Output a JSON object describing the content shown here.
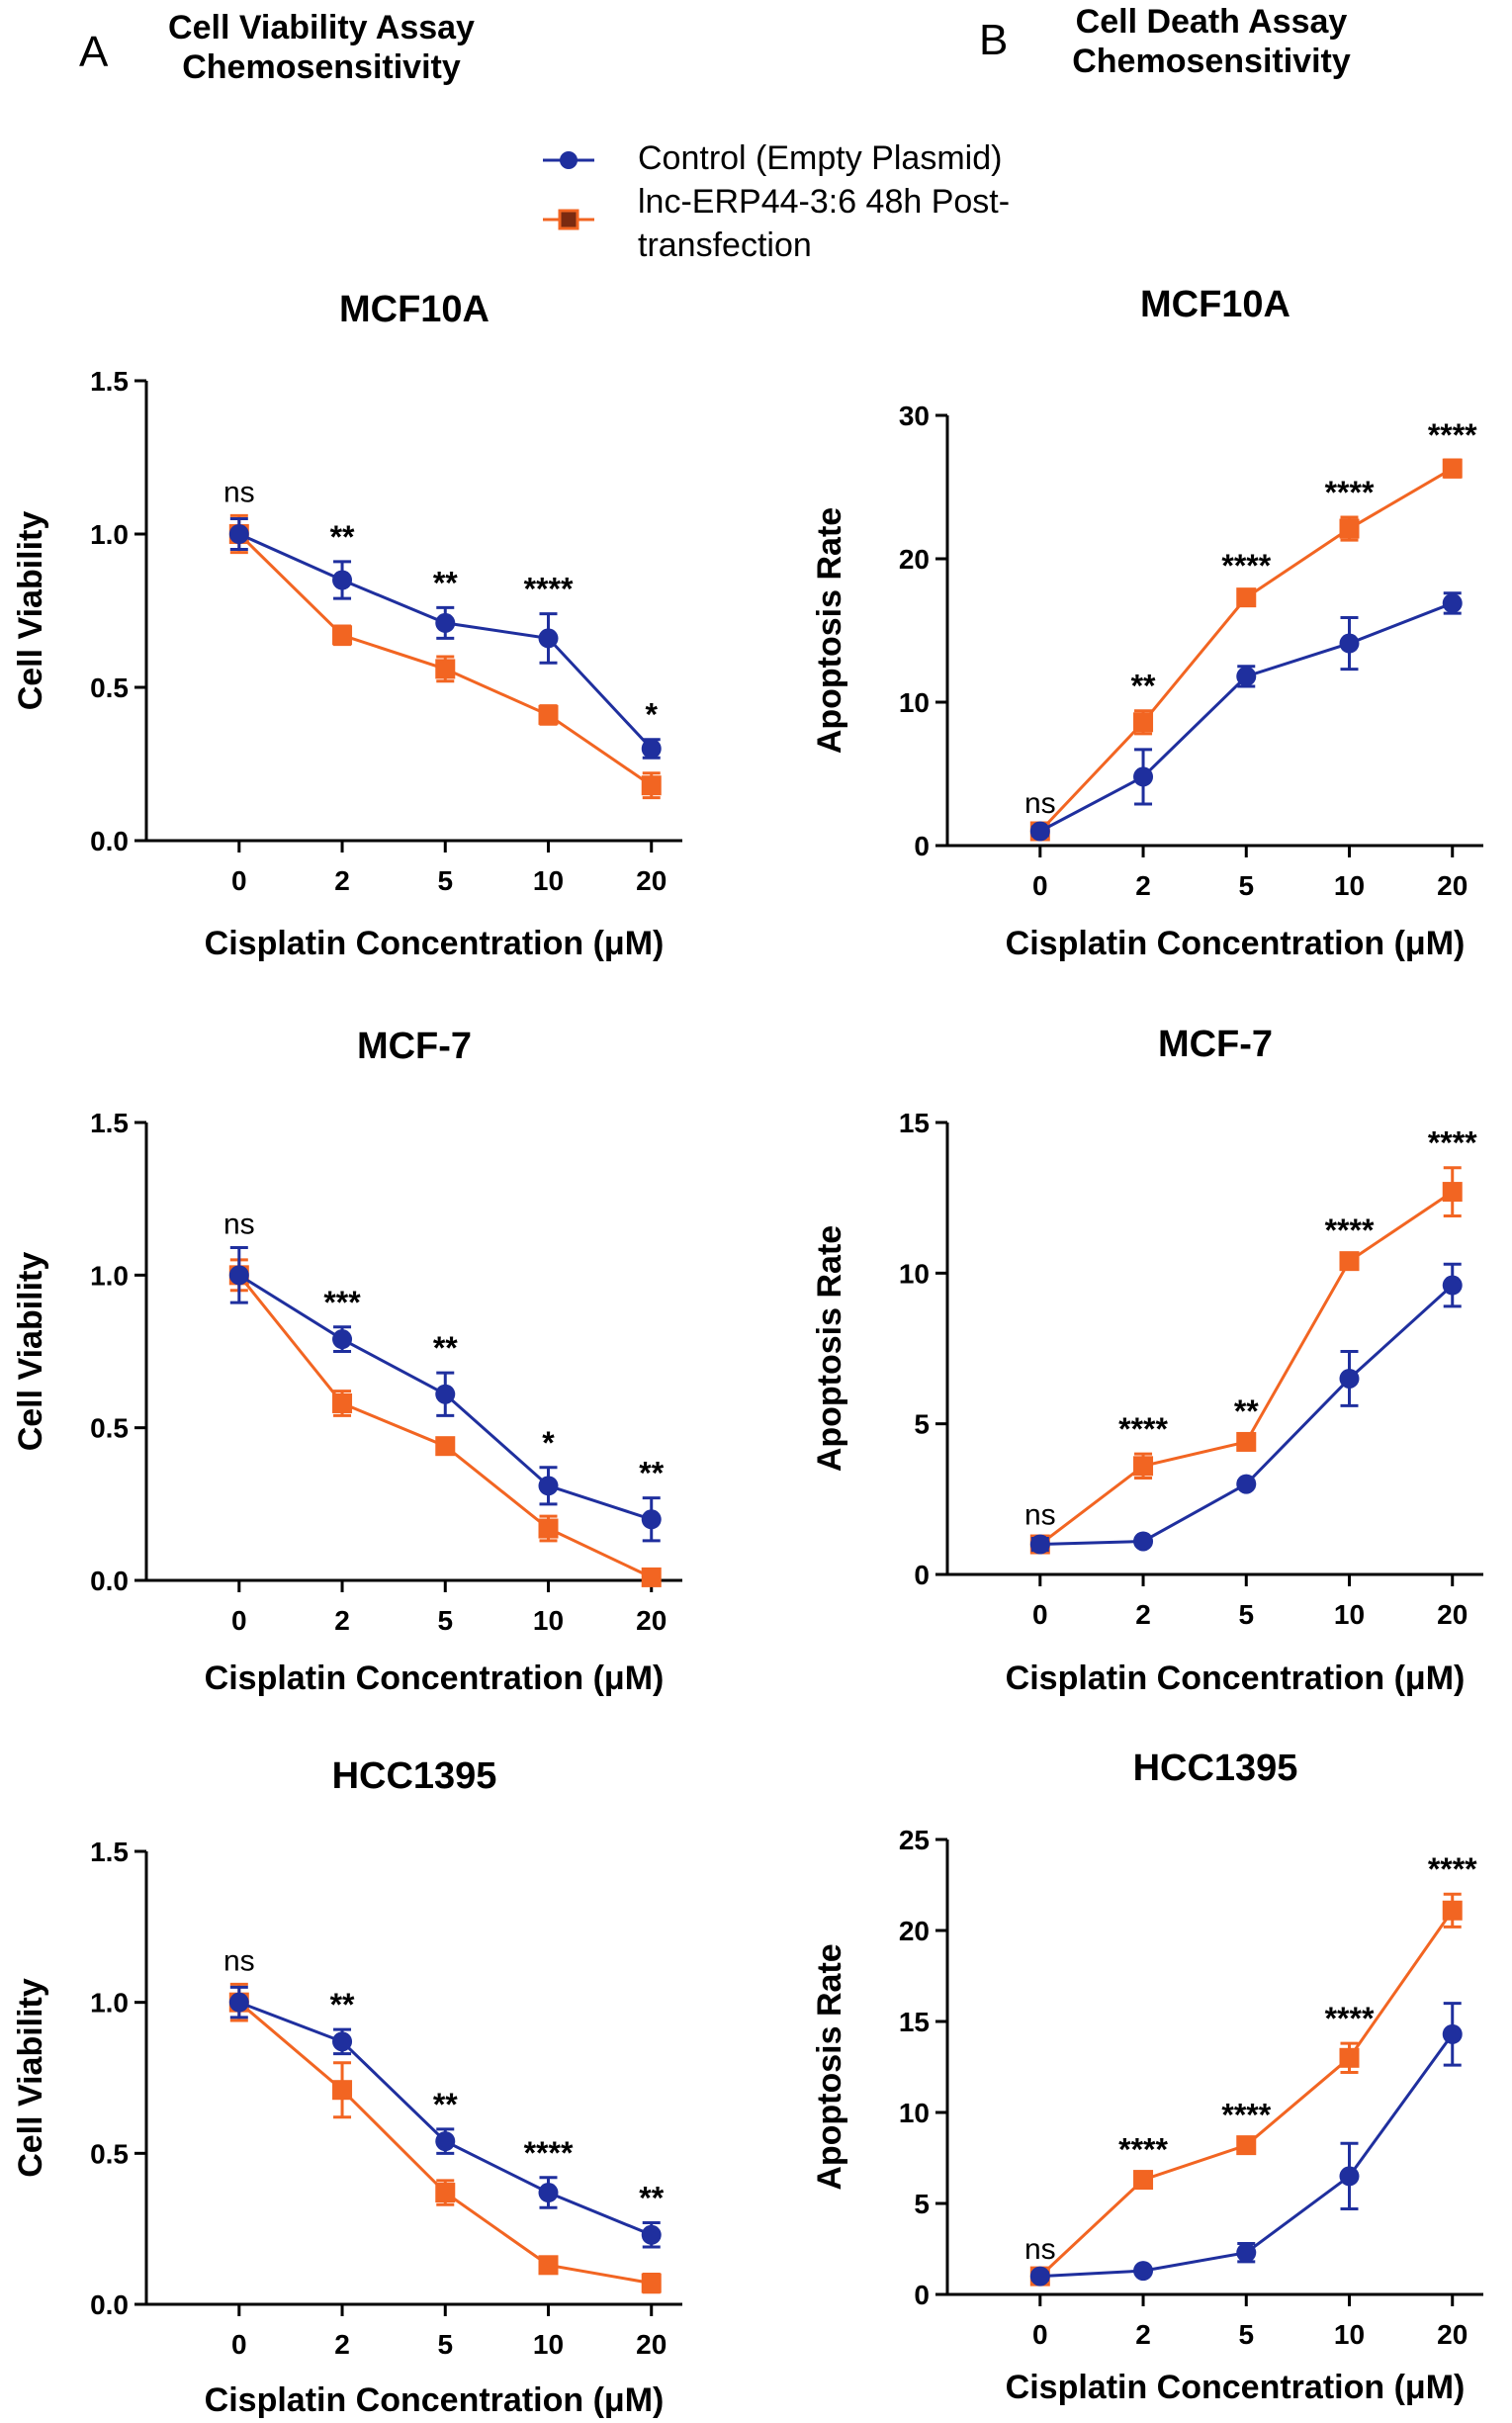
{
  "panels": {
    "left": {
      "letter": "A",
      "header_line1": "Cell Viability Assay",
      "header_line2": "Chemosensitivity"
    },
    "right": {
      "letter": "B",
      "header_line1": "Cell Death Assay",
      "header_line2": "Chemosensitivity"
    }
  },
  "legend": {
    "items": [
      {
        "label": "Control (Empty Plasmid)",
        "color": "#1f2f9e",
        "marker": "circle"
      },
      {
        "label_line1": "lnc-ERP44-3:6 48h Post-",
        "label_line2": "transfection",
        "color": "#f26522",
        "marker": "square"
      }
    ]
  },
  "colors": {
    "control": "#1f2f9e",
    "lnc": "#f26522",
    "axis": "#000000"
  },
  "chart_data": [
    {
      "type": "line",
      "panel": "A",
      "title": "MCF10A",
      "xlabel": "Cisplatin Concentration (μM)",
      "ylabel": "Cell Viability",
      "categories": [
        "0",
        "2",
        "5",
        "10",
        "20"
      ],
      "ylim": [
        0,
        1.5
      ],
      "yticks": [
        "0.0",
        "0.5",
        "1.0",
        "1.5"
      ],
      "ytick_values": [
        0,
        0.5,
        1.0,
        1.5
      ],
      "series": [
        {
          "name": "Control (Empty Plasmid)",
          "values": [
            1.0,
            0.85,
            0.71,
            0.66,
            0.3
          ],
          "errors": [
            0.05,
            0.06,
            0.05,
            0.08,
            0.03
          ]
        },
        {
          "name": "lnc-ERP44-3:6 48h Post-transfection",
          "values": [
            1.0,
            0.67,
            0.56,
            0.41,
            0.18
          ],
          "errors": [
            0.06,
            0.03,
            0.04,
            0.03,
            0.04
          ]
        }
      ],
      "significance": [
        "ns",
        "**",
        "**",
        "****",
        "*"
      ]
    },
    {
      "type": "line",
      "panel": "B",
      "title": "MCF10A",
      "xlabel": "Cisplatin Concentration (μM)",
      "ylabel": "Apoptosis Rate",
      "categories": [
        "0",
        "2",
        "5",
        "10",
        "20"
      ],
      "ylim": [
        0,
        30
      ],
      "yticks": [
        "0",
        "10",
        "20",
        "30"
      ],
      "ytick_values": [
        0,
        10,
        20,
        30
      ],
      "series": [
        {
          "name": "Control (Empty Plasmid)",
          "values": [
            1.0,
            4.8,
            11.8,
            14.1,
            16.9
          ],
          "errors": [
            0.3,
            1.9,
            0.7,
            1.8,
            0.7
          ]
        },
        {
          "name": "lnc-ERP44-3:6 48h Post-transfection",
          "values": [
            1.0,
            8.6,
            17.3,
            22.1,
            26.3
          ],
          "errors": [
            0.3,
            0.8,
            0.5,
            0.8,
            0.6
          ]
        }
      ],
      "significance": [
        "ns",
        "**",
        "****",
        "****",
        "****"
      ]
    },
    {
      "type": "line",
      "panel": "A",
      "title": "MCF-7",
      "xlabel": "Cisplatin Concentration (μM)",
      "ylabel": "Cell Viability",
      "categories": [
        "0",
        "2",
        "5",
        "10",
        "20"
      ],
      "ylim": [
        0,
        1.5
      ],
      "yticks": [
        "0.0",
        "0.5",
        "1.0",
        "1.5"
      ],
      "ytick_values": [
        0,
        0.5,
        1.0,
        1.5
      ],
      "series": [
        {
          "name": "Control (Empty Plasmid)",
          "values": [
            1.0,
            0.79,
            0.61,
            0.31,
            0.2
          ],
          "errors": [
            0.09,
            0.04,
            0.07,
            0.06,
            0.07
          ]
        },
        {
          "name": "lnc-ERP44-3:6 48h Post-transfection",
          "values": [
            1.0,
            0.58,
            0.44,
            0.17,
            0.01
          ],
          "errors": [
            0.05,
            0.04,
            0.02,
            0.04,
            0.01
          ]
        }
      ],
      "significance": [
        "ns",
        "***",
        "**",
        "*",
        "**"
      ]
    },
    {
      "type": "line",
      "panel": "B",
      "title": "MCF-7",
      "xlabel": "Cisplatin Concentration (μM)",
      "ylabel": "Apoptosis Rate",
      "categories": [
        "0",
        "2",
        "5",
        "10",
        "20"
      ],
      "ylim": [
        0,
        15
      ],
      "yticks": [
        "0",
        "5",
        "10",
        "15"
      ],
      "ytick_values": [
        0,
        5,
        10,
        15
      ],
      "series": [
        {
          "name": "Control (Empty Plasmid)",
          "values": [
            1.0,
            1.1,
            3.0,
            6.5,
            9.6
          ],
          "errors": [
            0.2,
            0.1,
            0.1,
            0.9,
            0.7
          ]
        },
        {
          "name": "lnc-ERP44-3:6 48h Post-transfection",
          "values": [
            1.0,
            3.6,
            4.4,
            10.4,
            12.7
          ],
          "errors": [
            0.2,
            0.4,
            0.2,
            0.2,
            0.8
          ]
        }
      ],
      "significance": [
        "ns",
        "****",
        "**",
        "****",
        "****"
      ]
    },
    {
      "type": "line",
      "panel": "A",
      "title": "HCC1395",
      "xlabel": "Cisplatin Concentration (μM)",
      "ylabel": "Cell Viability",
      "categories": [
        "0",
        "2",
        "5",
        "10",
        "20"
      ],
      "ylim": [
        0,
        1.5
      ],
      "yticks": [
        "0.0",
        "0.5",
        "1.0",
        "1.5"
      ],
      "ytick_values": [
        0,
        0.5,
        1.0,
        1.5
      ],
      "series": [
        {
          "name": "Control (Empty Plasmid)",
          "values": [
            1.0,
            0.87,
            0.54,
            0.37,
            0.23
          ],
          "errors": [
            0.05,
            0.04,
            0.04,
            0.05,
            0.04
          ]
        },
        {
          "name": "lnc-ERP44-3:6 48h Post-transfection",
          "values": [
            1.0,
            0.71,
            0.37,
            0.13,
            0.07
          ],
          "errors": [
            0.06,
            0.09,
            0.04,
            0.02,
            0.03
          ]
        }
      ],
      "significance": [
        "ns",
        "**",
        "**",
        "****",
        "**"
      ]
    },
    {
      "type": "line",
      "panel": "B",
      "title": "HCC1395",
      "xlabel": "Cisplatin Concentration (μM)",
      "ylabel": "Apoptosis Rate",
      "categories": [
        "0",
        "2",
        "5",
        "10",
        "20"
      ],
      "ylim": [
        0,
        25
      ],
      "yticks": [
        "0",
        "5",
        "10",
        "15",
        "20",
        "25"
      ],
      "ytick_values": [
        0,
        5,
        10,
        15,
        20,
        25
      ],
      "series": [
        {
          "name": "Control (Empty Plasmid)",
          "values": [
            1.0,
            1.3,
            2.3,
            6.5,
            14.3
          ],
          "errors": [
            0.2,
            0.1,
            0.5,
            1.8,
            1.7
          ]
        },
        {
          "name": "lnc-ERP44-3:6 48h Post-transfection",
          "values": [
            1.0,
            6.3,
            8.2,
            13.0,
            21.1
          ],
          "errors": [
            0.2,
            0.3,
            0.3,
            0.8,
            0.9
          ]
        }
      ],
      "significance": [
        "ns",
        "****",
        "****",
        "****",
        "****"
      ]
    }
  ]
}
